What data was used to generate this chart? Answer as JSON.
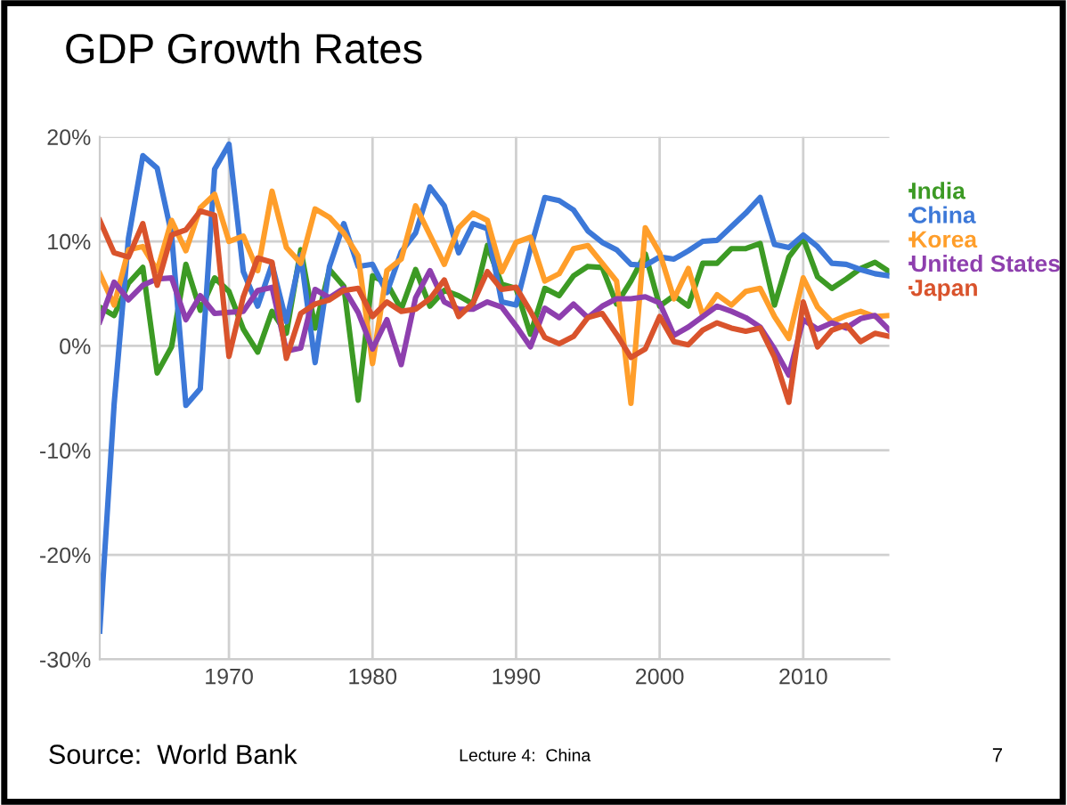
{
  "chart_data": {
    "type": "line",
    "title": "GDP Growth Rates",
    "x": [
      1961,
      1962,
      1963,
      1964,
      1965,
      1966,
      1967,
      1968,
      1969,
      1970,
      1971,
      1972,
      1973,
      1974,
      1975,
      1976,
      1977,
      1978,
      1979,
      1980,
      1981,
      1982,
      1983,
      1984,
      1985,
      1986,
      1987,
      1988,
      1989,
      1990,
      1991,
      1992,
      1993,
      1994,
      1995,
      1996,
      1997,
      1998,
      1999,
      2000,
      2001,
      2002,
      2003,
      2004,
      2005,
      2006,
      2007,
      2008,
      2009,
      2010,
      2011,
      2012,
      2013,
      2014,
      2015,
      2016
    ],
    "series": [
      {
        "name": "India",
        "color": "#3c9a24",
        "values": [
          3.7,
          2.9,
          6.0,
          7.5,
          -2.6,
          -0.1,
          7.8,
          3.4,
          6.5,
          5.2,
          1.6,
          -0.6,
          3.3,
          1.2,
          9.2,
          1.7,
          7.3,
          5.7,
          -5.2,
          6.7,
          6.0,
          3.5,
          7.3,
          3.8,
          5.3,
          4.8,
          4.0,
          9.6,
          5.9,
          5.5,
          1.1,
          5.5,
          4.8,
          6.7,
          7.6,
          7.5,
          4.0,
          6.2,
          8.8,
          3.8,
          4.8,
          3.8,
          7.9,
          7.9,
          9.3,
          9.3,
          9.8,
          3.9,
          8.5,
          10.3,
          6.6,
          5.5,
          6.4,
          7.4,
          8.0,
          7.1
        ]
      },
      {
        "name": "China",
        "color": "#3c78d8",
        "values": [
          -27.3,
          -5.6,
          10.3,
          18.2,
          17.0,
          10.7,
          -5.7,
          -4.1,
          16.9,
          19.3,
          7.1,
          3.8,
          7.8,
          2.3,
          8.7,
          -1.6,
          7.6,
          11.7,
          7.6,
          7.8,
          5.1,
          9.0,
          10.8,
          15.2,
          13.4,
          8.9,
          11.7,
          11.2,
          4.2,
          3.9,
          9.3,
          14.2,
          13.9,
          13.0,
          11.0,
          9.9,
          9.2,
          7.8,
          7.7,
          8.5,
          8.3,
          9.1,
          10.0,
          10.1,
          11.4,
          12.7,
          14.2,
          9.7,
          9.4,
          10.6,
          9.5,
          7.9,
          7.8,
          7.3,
          6.9,
          6.7
        ]
      },
      {
        "name": "Korea",
        "color": "#ff9e2a",
        "values": [
          6.9,
          3.9,
          9.2,
          9.5,
          7.2,
          12.0,
          9.1,
          13.2,
          14.5,
          10.0,
          10.5,
          7.2,
          14.8,
          9.4,
          7.9,
          13.1,
          12.3,
          10.8,
          8.6,
          -1.7,
          7.2,
          8.3,
          13.4,
          10.6,
          7.8,
          11.3,
          12.7,
          12.0,
          7.1,
          9.9,
          10.4,
          6.2,
          6.9,
          9.3,
          9.6,
          7.9,
          6.2,
          -5.5,
          11.3,
          8.9,
          4.5,
          7.4,
          2.9,
          4.9,
          3.9,
          5.2,
          5.5,
          2.8,
          0.7,
          6.5,
          3.7,
          2.3,
          2.9,
          3.3,
          2.8,
          2.9
        ]
      },
      {
        "name": "United States",
        "color": "#8e3fae",
        "values": [
          2.3,
          6.1,
          4.4,
          5.8,
          6.4,
          6.5,
          2.5,
          4.8,
          3.1,
          3.2,
          3.3,
          5.3,
          5.6,
          -0.5,
          -0.2,
          5.4,
          4.6,
          5.5,
          3.2,
          -0.3,
          2.5,
          -1.8,
          4.6,
          7.2,
          4.2,
          3.5,
          3.5,
          4.2,
          3.7,
          1.9,
          -0.1,
          3.6,
          2.7,
          4.0,
          2.7,
          3.8,
          4.5,
          4.5,
          4.7,
          4.1,
          1.0,
          1.8,
          2.8,
          3.8,
          3.3,
          2.7,
          1.8,
          -0.3,
          -2.8,
          2.5,
          1.6,
          2.2,
          1.7,
          2.6,
          2.9,
          1.5
        ]
      },
      {
        "name": "Japan",
        "color": "#d9532c",
        "values": [
          12.0,
          8.9,
          8.5,
          11.7,
          5.8,
          10.6,
          11.1,
          12.9,
          12.5,
          -1.0,
          4.7,
          8.4,
          8.0,
          -1.2,
          3.1,
          4.0,
          4.4,
          5.3,
          5.5,
          2.8,
          4.2,
          3.3,
          3.5,
          4.5,
          6.3,
          2.8,
          4.1,
          7.1,
          5.4,
          5.6,
          3.3,
          0.8,
          0.2,
          0.9,
          2.7,
          3.1,
          1.1,
          -1.1,
          -0.3,
          2.8,
          0.4,
          0.1,
          1.5,
          2.2,
          1.7,
          1.4,
          1.7,
          -1.1,
          -5.4,
          4.2,
          -0.1,
          1.5,
          2.0,
          0.4,
          1.2,
          0.9
        ]
      }
    ],
    "xlim": [
      1961,
      2016
    ],
    "xticks": [
      1970,
      1980,
      1990,
      2000,
      2010
    ],
    "ylim": [
      -30,
      20
    ],
    "yticks": [
      {
        "value": -30,
        "label": "-30%"
      },
      {
        "value": -20,
        "label": "-20%"
      },
      {
        "value": -10,
        "label": "-10%"
      },
      {
        "value": 0,
        "label": "0%"
      },
      {
        "value": 10,
        "label": "10%"
      },
      {
        "value": 20,
        "label": "20%"
      }
    ],
    "grid": true,
    "legend": "right",
    "marker": "none",
    "line_style": "solid",
    "annotations": [
      "Source:  World Bank",
      "Lecture 4:  China",
      "7"
    ]
  }
}
